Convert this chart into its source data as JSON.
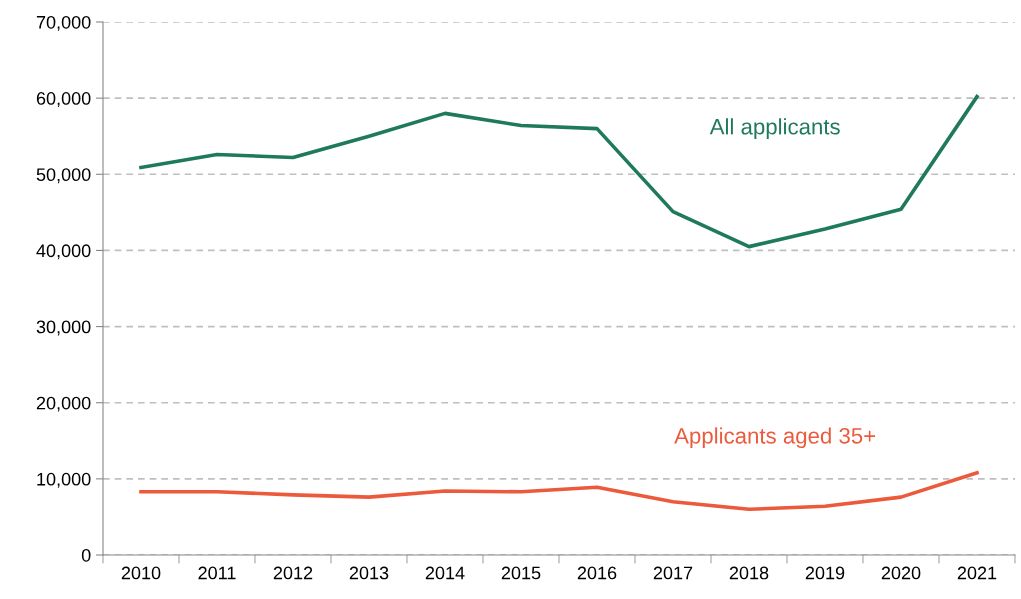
{
  "chart_data": {
    "type": "line",
    "categories": [
      "2010",
      "2011",
      "2012",
      "2013",
      "2014",
      "2015",
      "2016",
      "2017",
      "2018",
      "2019",
      "2020",
      "2021"
    ],
    "series": [
      {
        "name": "All applicants",
        "color": "#1f7a5c",
        "values": [
          50900,
          52600,
          52200,
          55000,
          58000,
          56400,
          56000,
          45100,
          40500,
          42800,
          45400,
          60200
        ]
      },
      {
        "name": "Applicants aged 35+",
        "color": "#ec5a3c",
        "values": [
          8300,
          8300,
          7900,
          7600,
          8400,
          8300,
          8900,
          7000,
          6000,
          6400,
          7600,
          10800
        ]
      }
    ],
    "ylim": [
      0,
      70000
    ],
    "yticks": [
      {
        "value": 0,
        "label": "0"
      },
      {
        "value": 10000,
        "label": "10,000"
      },
      {
        "value": 20000,
        "label": "20,000"
      },
      {
        "value": 30000,
        "label": "30,000"
      },
      {
        "value": 40000,
        "label": "40,000"
      },
      {
        "value": 50000,
        "label": "50,000"
      },
      {
        "value": 60000,
        "label": "60,000"
      },
      {
        "value": 70000,
        "label": "70,000"
      }
    ],
    "grid": "y",
    "legend": false,
    "marker": "none",
    "line_style": "solid"
  }
}
